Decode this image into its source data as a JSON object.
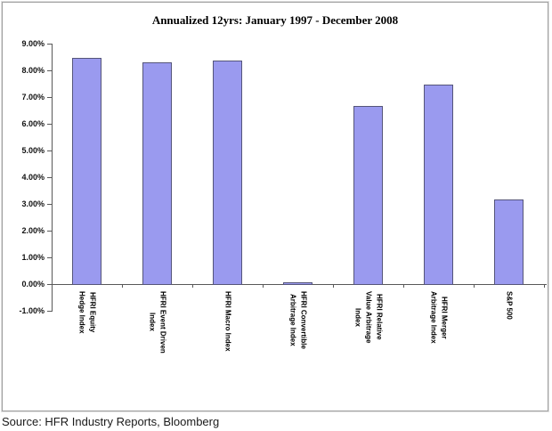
{
  "source_note": "Source: HFR Industry Reports, Bloomberg",
  "chart_data": {
    "type": "bar",
    "title": "Annualized 12yrs: January 1997 - December 2008",
    "categories": [
      "HFRI Equity Hedge Index",
      "HFRI Event Driven Index",
      "HFRI Macro Index",
      "HFRI Convertible Arbitrage Index",
      "HFRI Relative Value Arbitrage Index",
      "HFRI Merger Arbitrage Index",
      "S&P 500"
    ],
    "category_label_lines": [
      [
        "HFRI Equity",
        "Hedge Index"
      ],
      [
        "HFRI Event Driven",
        "Index"
      ],
      [
        "HFRI Macro Index"
      ],
      [
        "HFRI Convertible",
        "Arbitrage Index"
      ],
      [
        "HFRI Relative",
        "Value Arbitrage",
        "Index"
      ],
      [
        "HFRI Merger",
        "Arbitrage Index"
      ],
      [
        "S&P 500"
      ]
    ],
    "values": [
      8.5,
      8.35,
      8.4,
      0.05,
      6.7,
      7.5,
      3.2
    ],
    "unit": "%",
    "xlabel": "",
    "ylabel": "",
    "ylim": [
      -1,
      9
    ],
    "ytick_step": 1,
    "ytick_labels": [
      "9.00%",
      "8.00%",
      "7.00%",
      "6.00%",
      "5.00%",
      "4.00%",
      "3.00%",
      "2.00%",
      "1.00%",
      "0.00%",
      "-1.00%"
    ],
    "grid": false,
    "legend": false,
    "colors": {
      "bar_fill": "#9A9AEF",
      "bar_border": "#55557A",
      "axis_line": "#595959",
      "box_border": "#A0A0A0",
      "title_text": "#000000",
      "source_text": "#1A1A1A"
    }
  }
}
